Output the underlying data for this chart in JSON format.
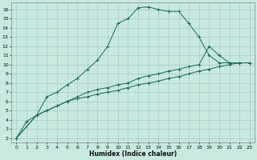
{
  "xlabel": "Humidex (Indice chaleur)",
  "background_color": "#c8e8e0",
  "grid_color": "#a8ccc4",
  "line_color": "#1a6b5a",
  "xlim": [
    -0.5,
    23.5
  ],
  "ylim": [
    1.5,
    16.8
  ],
  "xticks": [
    0,
    1,
    2,
    3,
    4,
    5,
    6,
    7,
    8,
    9,
    10,
    11,
    12,
    13,
    14,
    15,
    16,
    17,
    18,
    19,
    20,
    21,
    22,
    23
  ],
  "yticks": [
    2,
    3,
    4,
    5,
    6,
    7,
    8,
    9,
    10,
    11,
    12,
    13,
    14,
    15,
    16
  ],
  "curve1_x": [
    0,
    1,
    2,
    3,
    4,
    5,
    6,
    7,
    8,
    9,
    10,
    11,
    12,
    13,
    14,
    15,
    16,
    17,
    18,
    19,
    20,
    21,
    22,
    23
  ],
  "curve1_y": [
    2.0,
    3.8,
    4.5,
    6.5,
    7.0,
    7.8,
    8.5,
    9.5,
    10.5,
    12.0,
    14.5,
    15.0,
    16.2,
    16.3,
    16.0,
    15.8,
    15.8,
    14.5,
    13.0,
    11.0,
    10.2,
    10.2,
    10.2,
    10.2
  ],
  "curve2_x": [
    0,
    2,
    3,
    4,
    5,
    6,
    7,
    8,
    9,
    10,
    11,
    12,
    13,
    14,
    15,
    16,
    17,
    18,
    19,
    20,
    21,
    22,
    23
  ],
  "curve2_y": [
    2.0,
    4.5,
    5.0,
    5.5,
    6.0,
    6.5,
    7.0,
    7.3,
    7.5,
    7.8,
    8.0,
    8.5,
    8.8,
    9.0,
    9.3,
    9.5,
    9.8,
    10.0,
    12.0,
    11.0,
    10.2,
    10.2,
    10.2
  ],
  "curve3_x": [
    0,
    2,
    3,
    4,
    5,
    6,
    7,
    8,
    9,
    10,
    11,
    12,
    13,
    14,
    15,
    16,
    17,
    18,
    19,
    20,
    21,
    22,
    23
  ],
  "curve3_y": [
    2.0,
    4.5,
    5.0,
    5.5,
    6.0,
    6.3,
    6.5,
    6.8,
    7.0,
    7.2,
    7.5,
    7.8,
    8.0,
    8.2,
    8.5,
    8.7,
    9.0,
    9.3,
    9.5,
    9.8,
    10.0,
    10.2,
    10.2
  ]
}
